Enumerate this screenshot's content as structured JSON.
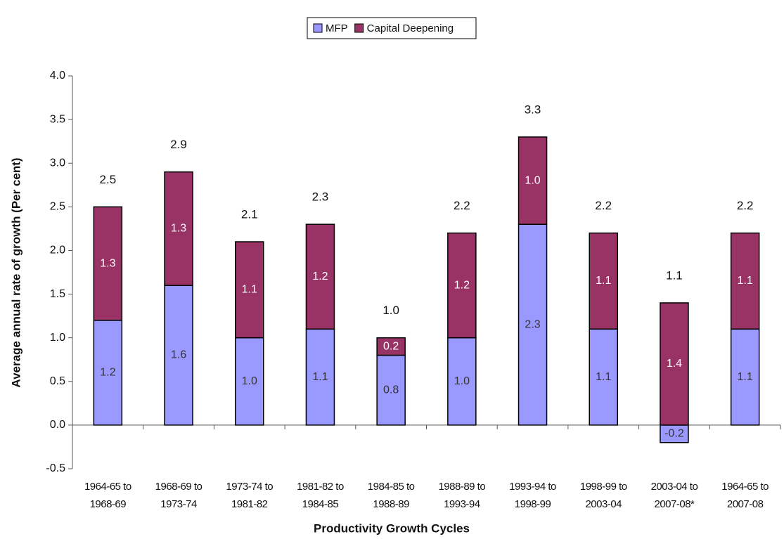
{
  "chart_data": {
    "type": "stacked_bar",
    "xlabel": "Productivity Growth Cycles",
    "ylabel": "Average annual rate of growth (Per cent)",
    "categories": [
      [
        "1964-65 to",
        "1968-69"
      ],
      [
        "1968-69 to",
        "1973-74"
      ],
      [
        "1973-74 to",
        "1981-82"
      ],
      [
        "1981-82 to",
        "1984-85"
      ],
      [
        "1984-85 to",
        "1988-89"
      ],
      [
        "1988-89 to",
        "1993-94"
      ],
      [
        "1993-94 to",
        "1998-99"
      ],
      [
        "1998-99 to",
        "2003-04"
      ],
      [
        "2003-04 to",
        "2007-08*"
      ],
      [
        "1964-65 to",
        "2007-08"
      ]
    ],
    "series": [
      {
        "name": "MFP",
        "color": "#9999ff",
        "values": [
          1.2,
          1.6,
          1,
          1.1,
          0.8,
          1,
          2.3,
          1.1,
          -0.2,
          1.1
        ],
        "value_labels": [
          "1.2",
          "1.6",
          "1.0",
          "1.1",
          "0.8",
          "1.0",
          "2.3",
          "1.1",
          "-0.2",
          "1.1"
        ]
      },
      {
        "name": "Capital Deepening",
        "color": "#993366",
        "values": [
          1.3,
          1.3,
          1.1,
          1.2,
          0.2,
          1.2,
          1,
          1.1,
          1.4,
          1.1
        ],
        "value_labels": [
          "1.3",
          "1.3",
          "1.1",
          "1.2",
          "0.2",
          "1.2",
          "1.0",
          "1.1",
          "1.4",
          "1.1"
        ]
      }
    ],
    "totals": [
      2.5,
      2.9,
      2.1,
      2.3,
      1,
      2.2,
      3.3,
      2.2,
      1.1,
      2.2
    ],
    "total_labels": [
      "2.5",
      "2.9",
      "2.1",
      "2.3",
      "1.0",
      "2.2",
      "3.3",
      "2.2",
      "1.1",
      "2.2"
    ],
    "ylim": [
      -0.5,
      4
    ],
    "yticks": [
      -0.5,
      {
        "value": 0,
        "label": "0.0"
      },
      0.5,
      {
        "value": 1,
        "label": "1.0"
      },
      1.5,
      {
        "value": 2,
        "label": "2.0"
      },
      2.5,
      {
        "value": 3,
        "label": "3.0"
      },
      3.5,
      {
        "value": 4,
        "label": "4.0"
      }
    ],
    "grid": false,
    "legend": "top"
  }
}
